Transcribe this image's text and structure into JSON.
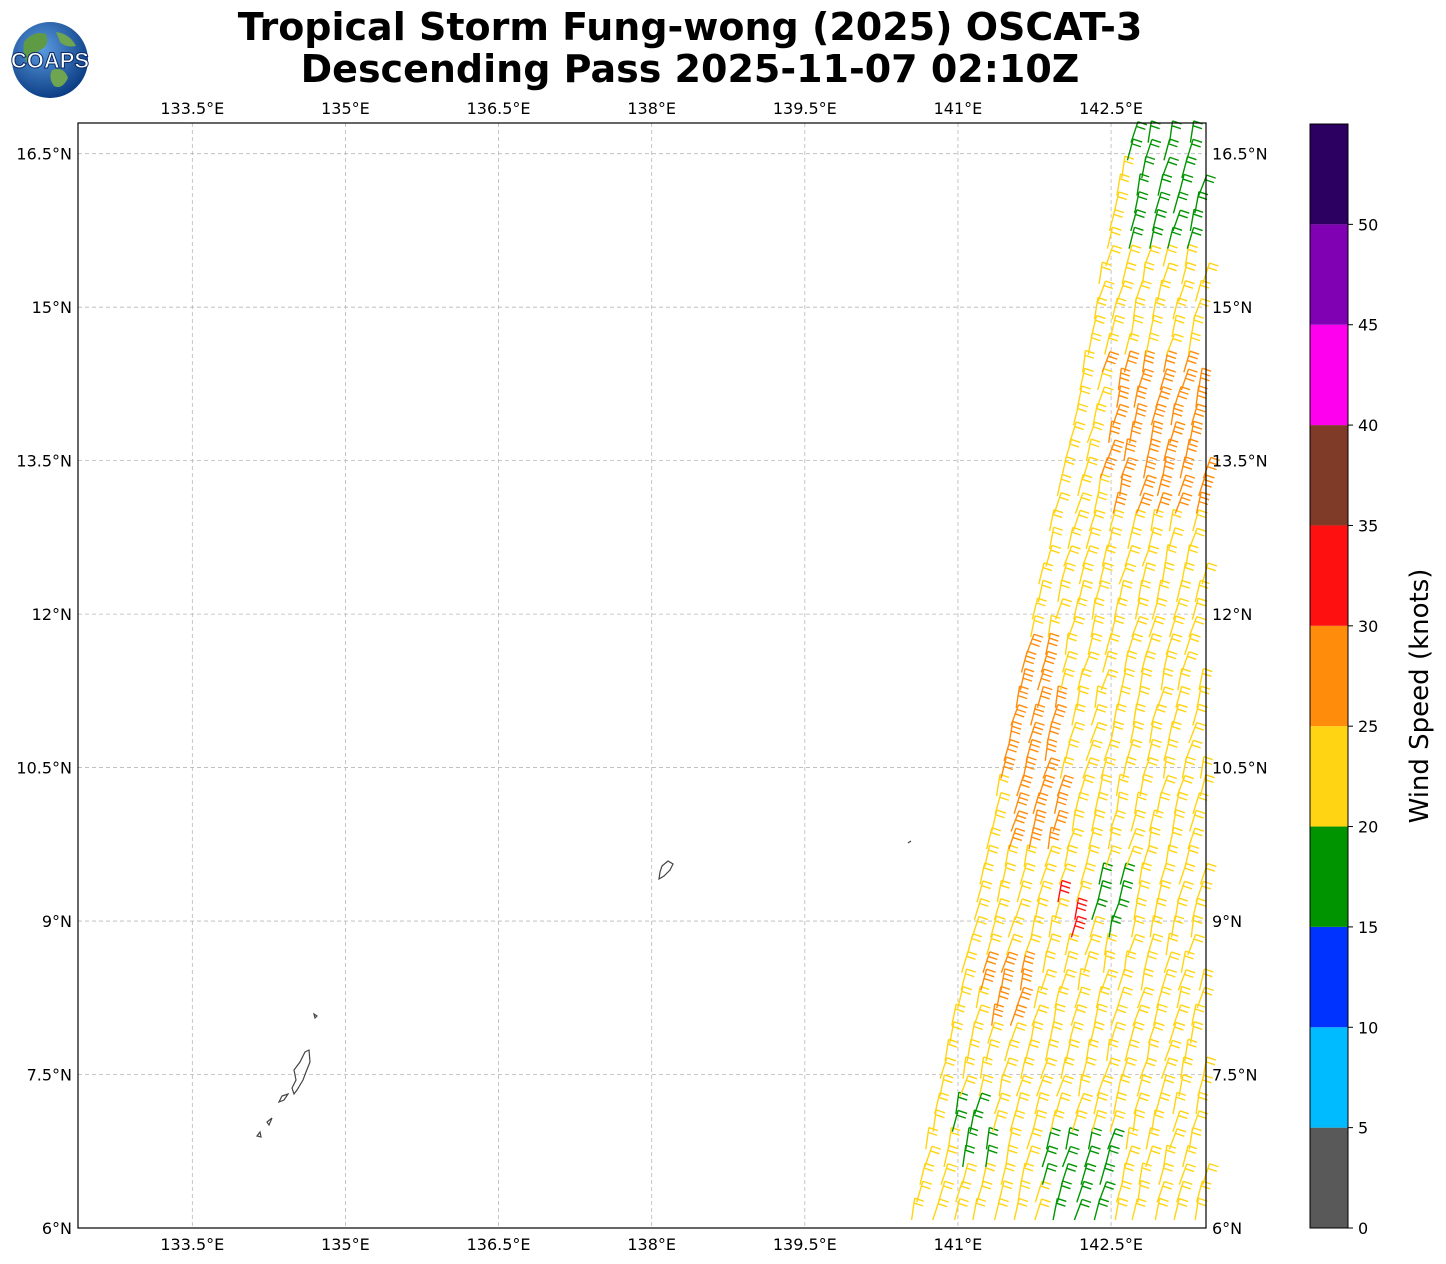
{
  "title": {
    "line1": "Tropical Storm Fung-wong (2025) OSCAT-3",
    "line2": "Descending Pass 2025-11-07 02:10Z"
  },
  "logo": {
    "text": "COAPS",
    "icon": "globe-icon",
    "ocean_color": "#1f5fb0",
    "land_color": "#4c8a3a"
  },
  "map": {
    "lon_range": [
      132.38,
      143.43
    ],
    "lat_range": [
      6.0,
      16.8
    ],
    "lon_ticks": [
      "133.5°E",
      "135°E",
      "136.5°E",
      "138°E",
      "139.5°E",
      "141°E",
      "142.5°E"
    ],
    "lon_values": [
      133.5,
      135,
      136.5,
      138,
      139.5,
      141,
      142.5
    ],
    "lat_ticks": [
      "16.5°N",
      "15°N",
      "13.5°N",
      "12°N",
      "10.5°N",
      "9°N",
      "7.5°N",
      "6°N"
    ],
    "lat_values": [
      16.5,
      15,
      13.5,
      12,
      10.5,
      9,
      7.5,
      6
    ],
    "grid": true,
    "coastline_color": "#444444"
  },
  "colorbar": {
    "label": "Wind Speed (knots)",
    "ticks": [
      "0",
      "5",
      "10",
      "15",
      "20",
      "25",
      "30",
      "35",
      "40",
      "45",
      "50"
    ],
    "bounds": [
      0,
      5,
      10,
      15,
      20,
      25,
      30,
      35,
      40,
      45,
      50,
      55
    ],
    "colors": [
      "#595959",
      "#00bbff",
      "#0033ff",
      "#009400",
      "#ffd412",
      "#ff8c0a",
      "#ff1010",
      "#803a28",
      "#ff00ee",
      "#8000b4",
      "#2c0060"
    ]
  },
  "chart_data": {
    "type": "wind-barbs",
    "swath": "OSCAT-3 descending pass, eastern edge of map",
    "color_scale": "wind speed in knots, 5-knot bins"
  }
}
